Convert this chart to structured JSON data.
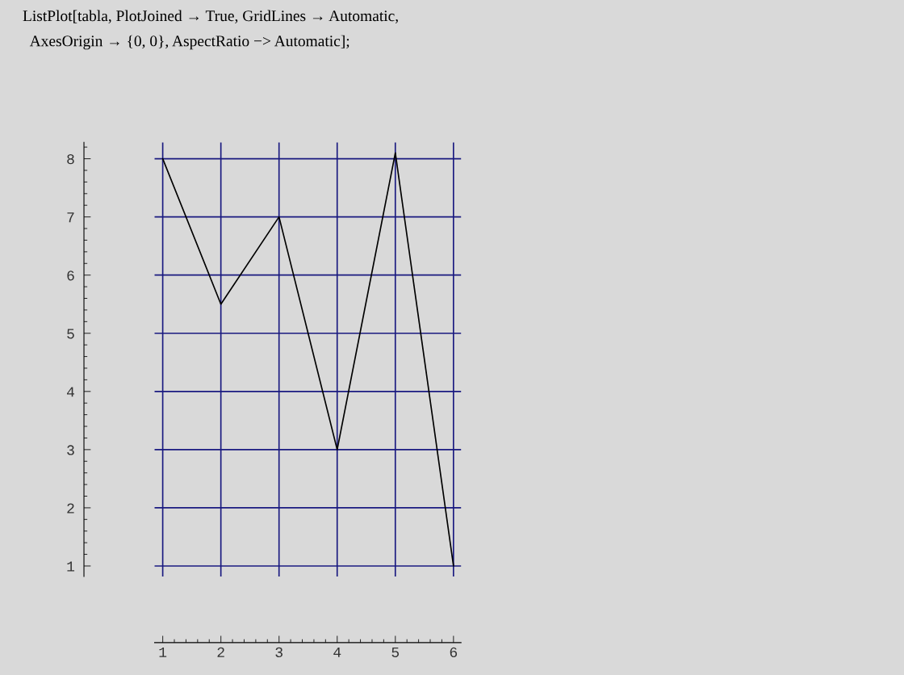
{
  "chart_data": {
    "type": "line",
    "title": "ListPlot[tabla, PlotJoined → True, GridLines → Automatic,\n  AxesOrigin → {0, 0}, AspectRatio −> Automatic];",
    "x": [
      1,
      2,
      3,
      4,
      5,
      6
    ],
    "series": [
      {
        "color": "#000000",
        "values": [
          8,
          5.5,
          7,
          3,
          8.1,
          1
        ]
      }
    ],
    "xlim": [
      0.86,
      6.13
    ],
    "xticks": [
      1,
      2,
      3,
      4,
      5,
      6
    ],
    "ylim": [
      0.82,
      8.28
    ],
    "yticks": [
      1,
      2,
      3,
      4,
      5,
      6,
      7,
      8
    ],
    "grid": true,
    "marker": "none",
    "line_style": "solid"
  }
}
